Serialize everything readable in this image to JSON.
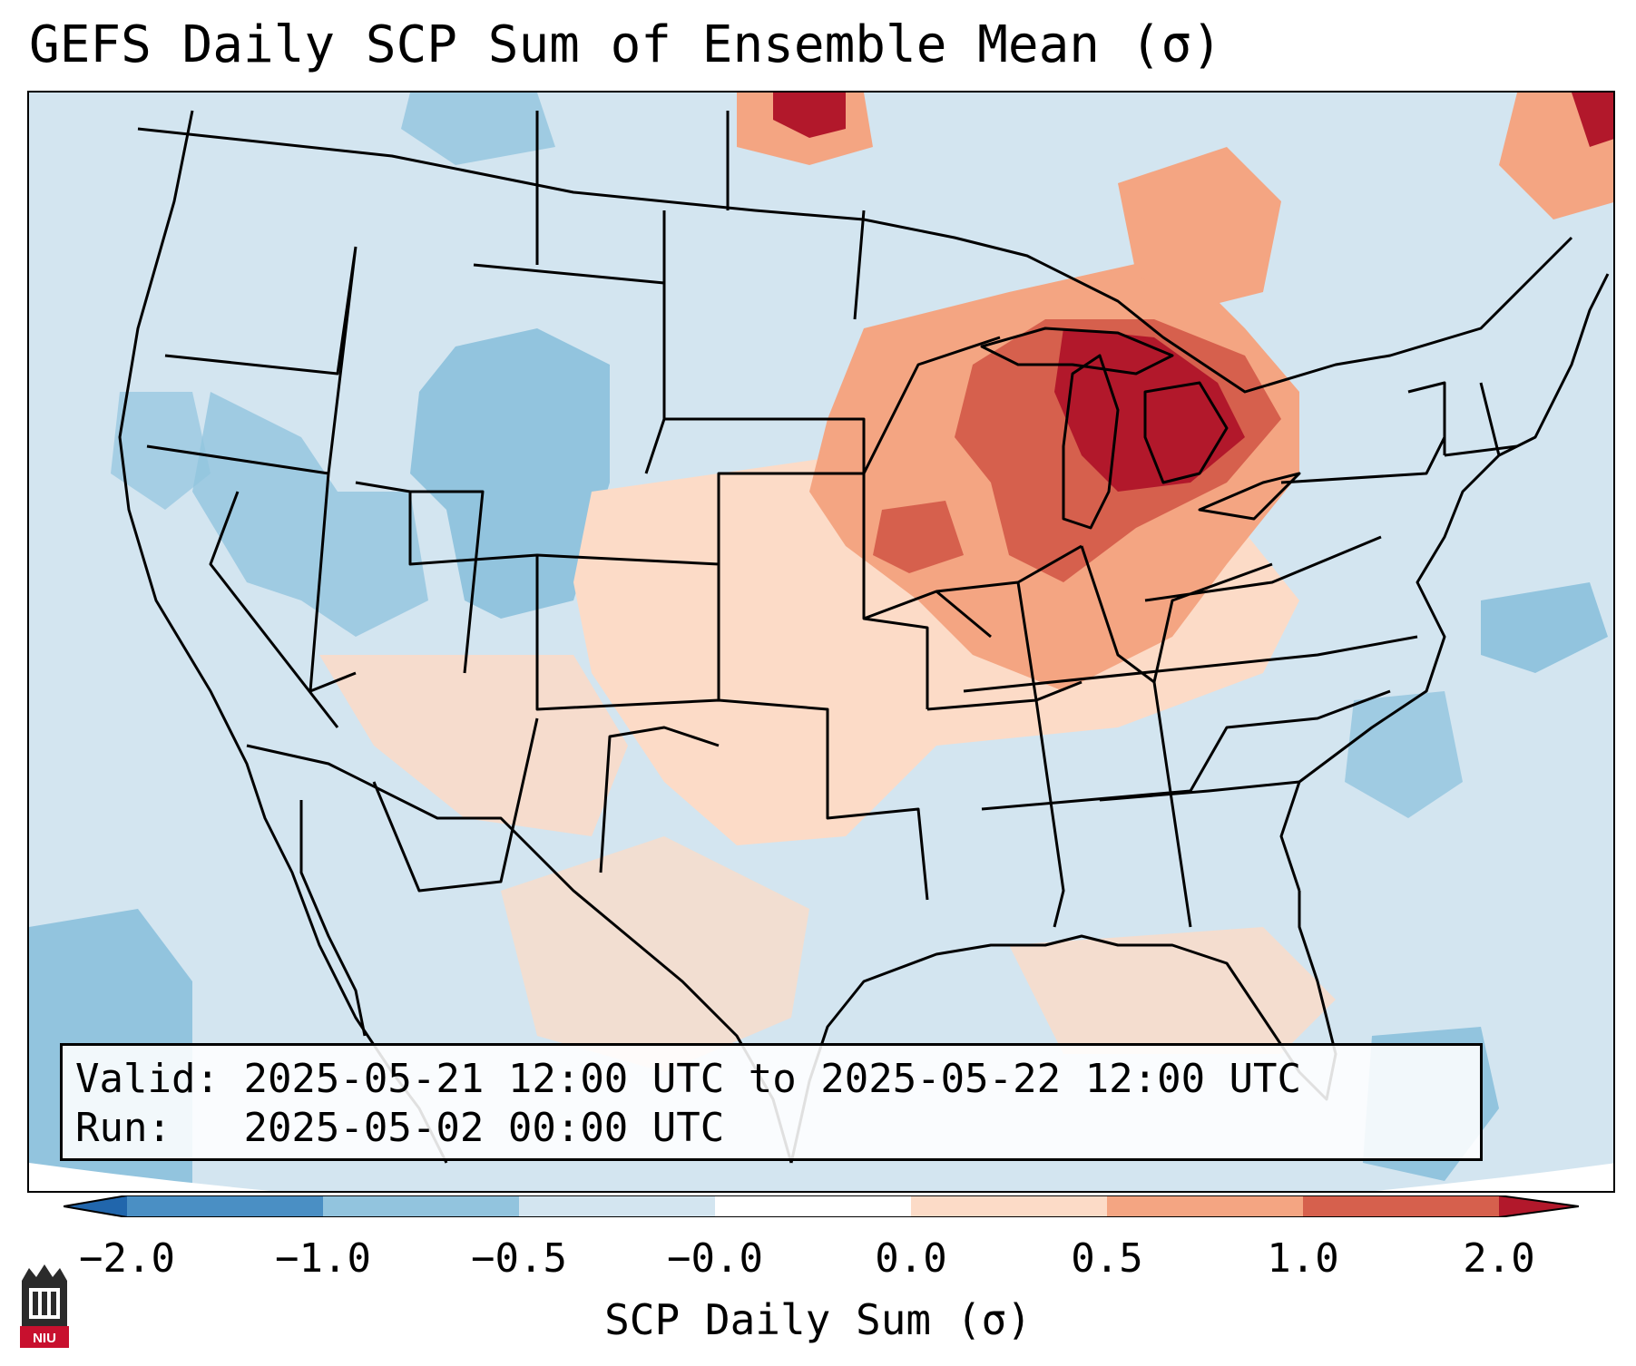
{
  "title": "GEFS Daily SCP Sum of Ensemble Mean (σ)",
  "valid": {
    "label": "Valid:",
    "value": "2025-05-21 12:00 UTC to 2025-05-22 12:00 UTC"
  },
  "run": {
    "label": "Run:",
    "value": "2025-05-02 00:00 UTC"
  },
  "colorbar": {
    "label": "SCP Daily Sum (σ)",
    "ticks": [
      "−2.0",
      "−1.0",
      "−0.5",
      "−0.0",
      "0.0",
      "0.5",
      "1.0",
      "2.0"
    ],
    "colors": [
      "#4a8fc4",
      "#92c4de",
      "#d3e5f0",
      "#ffffff",
      "#fcdbc7",
      "#f4a582",
      "#d6604d",
      "#b2182b"
    ],
    "extend_low_color": "#2166ac",
    "extend_high_color": "#b2182b"
  },
  "map": {
    "background_color": "#d3e5f0",
    "anomaly_regions": [
      {
        "level": "0.0 to 0.5",
        "color": "#fcdbc7"
      },
      {
        "level": "0.5 to 1.0",
        "color": "#f4a582"
      },
      {
        "level": "1.0 to 2.0",
        "color": "#d6604d"
      },
      {
        "level": "> 2.0",
        "color": "#b2182b"
      },
      {
        "level": "-1.0 to -0.5",
        "color": "#92c4de"
      }
    ]
  },
  "logo": {
    "text": "NIU",
    "icon": "niu-logo-icon"
  }
}
